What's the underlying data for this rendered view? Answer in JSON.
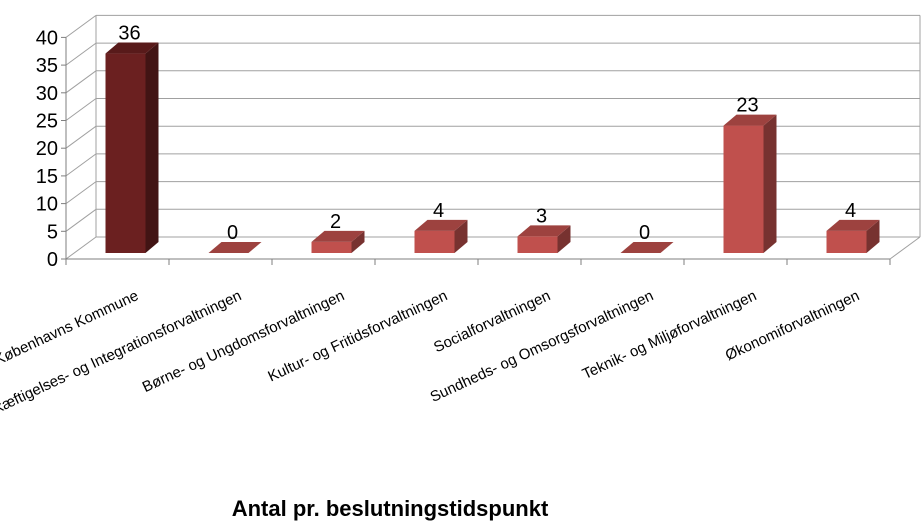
{
  "chart_data": {
    "type": "bar",
    "title": "Antal pr. beslutningstidspunkt",
    "categories": [
      "Københavns Kommune",
      "Beskæftigelses- og Integrationsforvaltningen",
      "Børne- og Ungdomsforvaltningen",
      "Kultur- og Fritidsforvaltningen",
      "Socialforvaltningen",
      "Sundheds- og Omsorgsforvaltningen",
      "Teknik- og Miljøforvaltningen",
      "Økonomiforvaltningen"
    ],
    "values": [
      36,
      0,
      2,
      4,
      3,
      0,
      23,
      4
    ],
    "data_labels": [
      "36",
      "0",
      "2",
      "4",
      "3",
      "0",
      "23",
      "4"
    ],
    "ylim": [
      0,
      40
    ],
    "yticks": [
      "0",
      "5",
      "10",
      "15",
      "20",
      "25",
      "30",
      "35",
      "40"
    ],
    "ytick_values": [
      0,
      5,
      10,
      15,
      20,
      25,
      30,
      35,
      40
    ],
    "xlabel": "",
    "ylabel": "",
    "grid": true,
    "legend": "none",
    "style": "3d-column",
    "colors": {
      "highlight": "#6B2020",
      "bar": "#C0504D",
      "grid": "#A0A0A0"
    }
  }
}
